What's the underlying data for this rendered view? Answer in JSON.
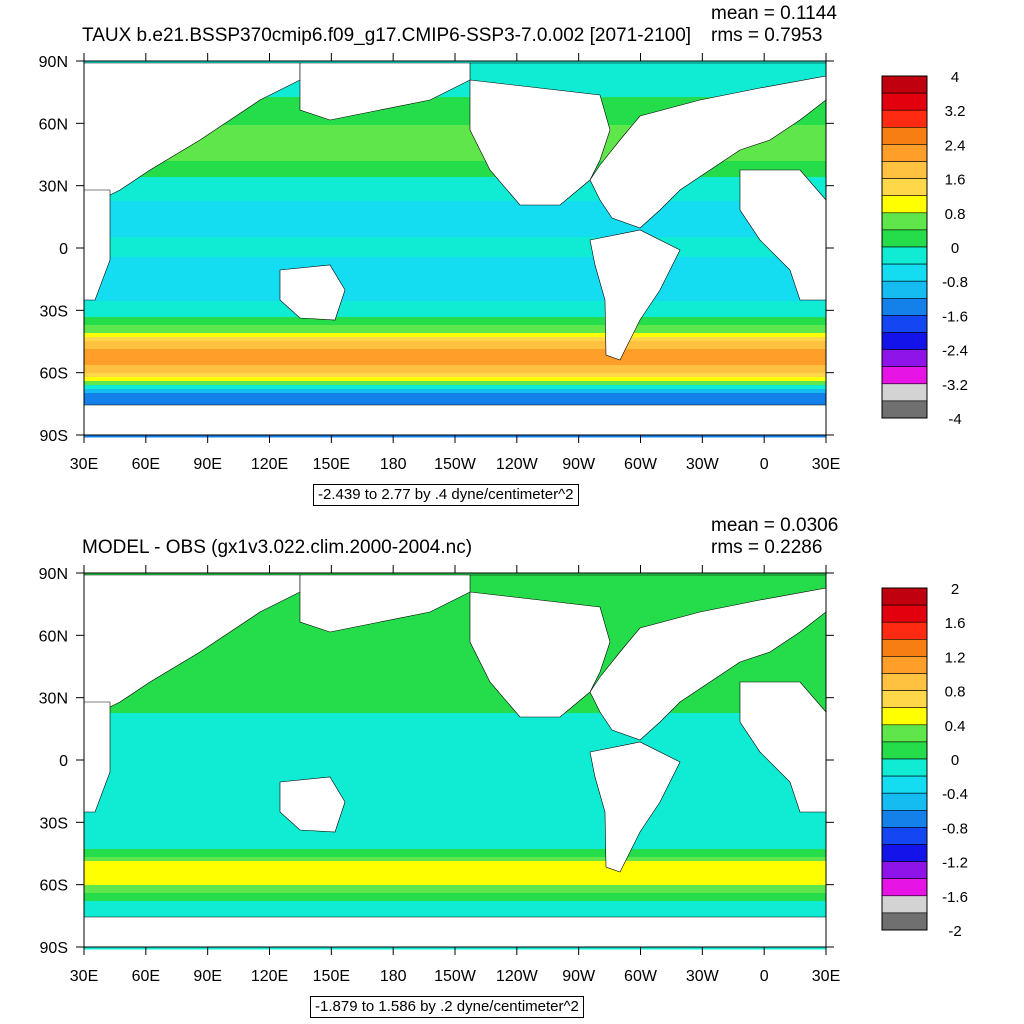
{
  "chart_data": [
    {
      "type": "heatmap",
      "title": "TAUX b.e21.BSSP370cmip6.f09_g17.CMIP6-SSP3-7.0.002 [2071-2100]",
      "mean_text": "mean = 0.1144",
      "rms_text": "rms = 0.7953",
      "caption": "-2.439 to 2.77 by .4 dyne/centimeter^2",
      "x_ticks": [
        "30E",
        "60E",
        "90E",
        "120E",
        "150E",
        "180",
        "150W",
        "120W",
        "90W",
        "60W",
        "30W",
        "0",
        "30E"
      ],
      "y_ticks": [
        "90N",
        "60N",
        "30N",
        "0",
        "30S",
        "60S",
        "90S"
      ],
      "colorbar": {
        "labels": [
          "4",
          "3.2",
          "2.4",
          "1.6",
          "0.8",
          "0",
          "-0.8",
          "-1.6",
          "-2.4",
          "-3.2",
          "-4"
        ],
        "range": [
          -4,
          4
        ],
        "colors": [
          "#c0000e",
          "#e3000e",
          "#ff2a12",
          "#f77e12",
          "#ff9f2a",
          "#ffc140",
          "#ffd84a",
          "#ffff00",
          "#5ee64a",
          "#25dc4a",
          "#10ecd4",
          "#14ddf2",
          "#14bcf2",
          "#1481ea",
          "#1446f2",
          "#1414ea",
          "#8f14ea",
          "#e614e4",
          "#d3d3d3",
          "#707070"
        ]
      },
      "zonal_profile": {
        "lat": [
          90,
          75,
          60,
          45,
          30,
          15,
          0,
          -15,
          -30,
          -40,
          -45,
          -50,
          -55,
          -60,
          -65,
          -70
        ],
        "value": [
          -0.2,
          -0.1,
          0.4,
          0.6,
          -0.2,
          -0.6,
          -0.3,
          -0.7,
          -0.3,
          0.6,
          1.5,
          2.2,
          2.3,
          1.6,
          0.4,
          -1.2
        ]
      },
      "ylim": [
        -90,
        90
      ]
    },
    {
      "type": "heatmap",
      "title": "MODEL - OBS (gx1v3.022.clim.2000-2004.nc)",
      "mean_text": "mean = 0.0306",
      "rms_text": "rms = 0.2286",
      "caption": "-1.879 to 1.586 by .2 dyne/centimeter^2",
      "x_ticks": [
        "30E",
        "60E",
        "90E",
        "120E",
        "150E",
        "180",
        "150W",
        "120W",
        "90W",
        "60W",
        "30W",
        "0",
        "30E"
      ],
      "y_ticks": [
        "90N",
        "60N",
        "30N",
        "0",
        "30S",
        "60S",
        "90S"
      ],
      "colorbar": {
        "labels": [
          "2",
          "1.6",
          "1.2",
          "0.8",
          "0.4",
          "0",
          "-0.4",
          "-0.8",
          "-1.2",
          "-1.6",
          "-2"
        ],
        "range": [
          -2,
          2
        ],
        "colors": [
          "#c0000e",
          "#e3000e",
          "#ff2a12",
          "#f77e12",
          "#ff9f2a",
          "#ffc140",
          "#ffd84a",
          "#ffff00",
          "#5ee64a",
          "#25dc4a",
          "#10ecd4",
          "#14ddf2",
          "#14bcf2",
          "#1481ea",
          "#1446f2",
          "#1414ea",
          "#8f14ea",
          "#e614e4",
          "#d3d3d3",
          "#707070"
        ]
      },
      "zonal_profile": {
        "lat": [
          90,
          75,
          60,
          45,
          30,
          15,
          0,
          -15,
          -30,
          -40,
          -45,
          -50,
          -55,
          -60,
          -65,
          -70
        ],
        "value": [
          0.1,
          0.0,
          0.1,
          0.05,
          0.05,
          -0.05,
          -0.05,
          -0.1,
          -0.05,
          -0.1,
          0.1,
          0.5,
          0.6,
          0.4,
          0.1,
          -0.1
        ]
      },
      "ylim": [
        -90,
        90
      ]
    }
  ],
  "colors": {
    "land": "#ffffff",
    "contour": "#000000"
  }
}
